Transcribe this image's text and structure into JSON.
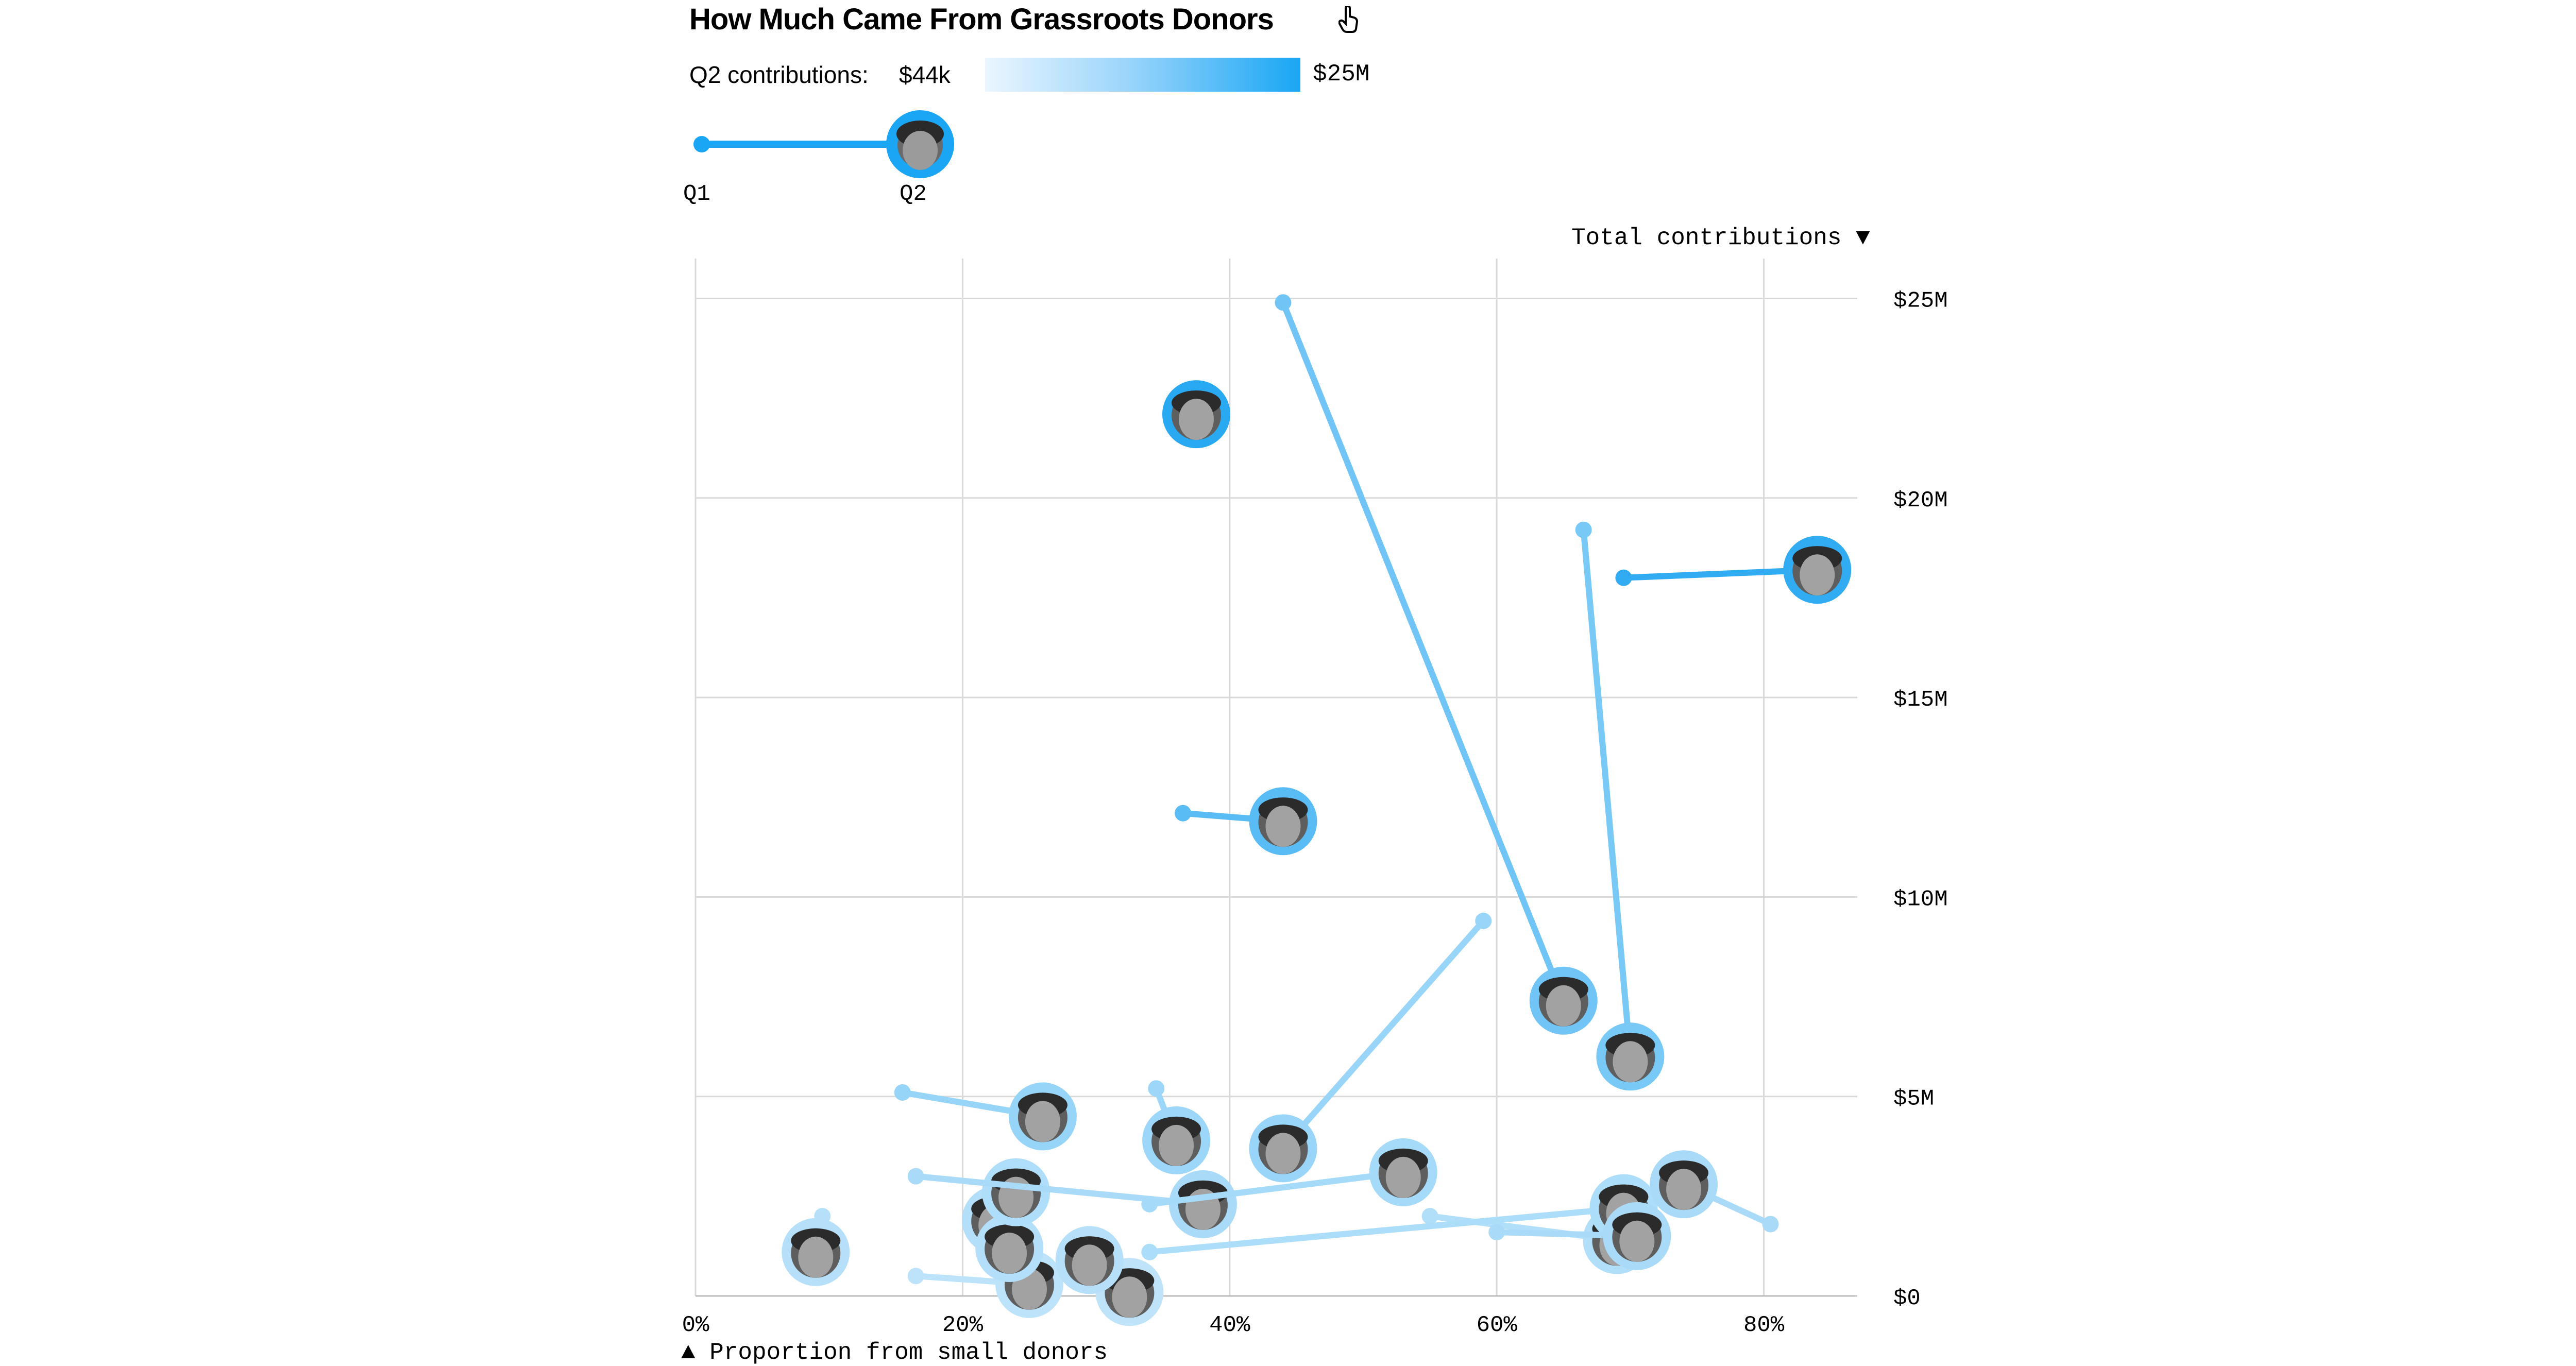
{
  "title": "How Much Came From Grassroots Donors",
  "title_icon": "pointer-hand-icon",
  "scale": {
    "label": "Q2 contributions:",
    "min": "$44k",
    "max": "$25M",
    "colors": [
      "#eaf6ff",
      "#1aa6f4"
    ]
  },
  "guide": {
    "q1": "Q1",
    "q2": "Q2"
  },
  "y_axis_title": "Total contributions ▼",
  "x_axis_title": "▲ Proportion from small donors",
  "colors": {
    "grid": "#d9d9d9",
    "strong": "#29a9f2",
    "light": "#c9e8fb"
  },
  "chart_data": {
    "type": "scatter",
    "title": "How Much Came From Grassroots Donors",
    "xlabel": "Proportion from small donors",
    "ylabel": "Total contributions",
    "xlim": [
      0,
      87
    ],
    "ylim": [
      0,
      26
    ],
    "x_ticks": [
      0,
      20,
      40,
      60,
      80
    ],
    "x_tick_labels": [
      "0%",
      "20%",
      "40%",
      "60%",
      "80%"
    ],
    "y_ticks": [
      0,
      5,
      10,
      15,
      20,
      25
    ],
    "y_tick_labels": [
      "$0",
      "$5M",
      "$10M",
      "$15M",
      "$20M",
      "$25M"
    ],
    "grid": true,
    "encoding": "each candidate is a line from Q1 (dot) to Q2 (photo); shade = Q2 contributions",
    "series": [
      {
        "q1": [
          44,
          24.9
        ],
        "q2": [
          65,
          7.4
        ],
        "shade": 0.55
      },
      {
        "q1": null,
        "q2": [
          37.5,
          22.1
        ],
        "shade": 1.0
      },
      {
        "q1": [
          69.5,
          18.0
        ],
        "q2": [
          84,
          18.2
        ],
        "shade": 0.95
      },
      {
        "q1": [
          66.5,
          19.2
        ],
        "q2": [
          70,
          6.0
        ],
        "shade": 0.5
      },
      {
        "q1": [
          36.5,
          12.1
        ],
        "q2": [
          44,
          11.9
        ],
        "shade": 0.7
      },
      {
        "q1": [
          59,
          9.4
        ],
        "q2": [
          44,
          3.7
        ],
        "shade": 0.3
      },
      {
        "q1": [
          15.5,
          5.1
        ],
        "q2": [
          26,
          4.5
        ],
        "shade": 0.32
      },
      {
        "q1": [
          34.5,
          5.2
        ],
        "q2": [
          36,
          3.9
        ],
        "shade": 0.28
      },
      {
        "q1": [
          16.5,
          3.0
        ],
        "q2": [
          38,
          2.3
        ],
        "shade": 0.2
      },
      {
        "q1": [
          34,
          2.3
        ],
        "q2": [
          53,
          3.1
        ],
        "shade": 0.22
      },
      {
        "q1": [
          9.5,
          2.0
        ],
        "q2": [
          9,
          1.1
        ],
        "shade": 0.12
      },
      {
        "q1": [
          80.5,
          1.8
        ],
        "q2": [
          74,
          2.8
        ],
        "shade": 0.2
      },
      {
        "q1": [
          34,
          1.1
        ],
        "q2": [
          69.5,
          2.2
        ],
        "shade": 0.18
      },
      {
        "q1": [
          60,
          1.6
        ],
        "q2": [
          70.5,
          1.5
        ],
        "shade": 0.2
      },
      {
        "q1": [
          55,
          2.0
        ],
        "q2": [
          69,
          1.4
        ],
        "shade": 0.15
      },
      {
        "q1": null,
        "q2": [
          24,
          2.6
        ],
        "shade": 0.16
      },
      {
        "q1": null,
        "q2": [
          22.5,
          1.9
        ],
        "shade": 0.14
      },
      {
        "q1": null,
        "q2": [
          23.5,
          1.2
        ],
        "shade": 0.14
      },
      {
        "q1": null,
        "q2": [
          29.5,
          0.9
        ],
        "shade": 0.12
      },
      {
        "q1": [
          16.5,
          0.5
        ],
        "q2": [
          25,
          0.3
        ],
        "shade": 0.08
      },
      {
        "q1": null,
        "q2": [
          32.5,
          0.1
        ],
        "shade": 0.06
      }
    ]
  }
}
